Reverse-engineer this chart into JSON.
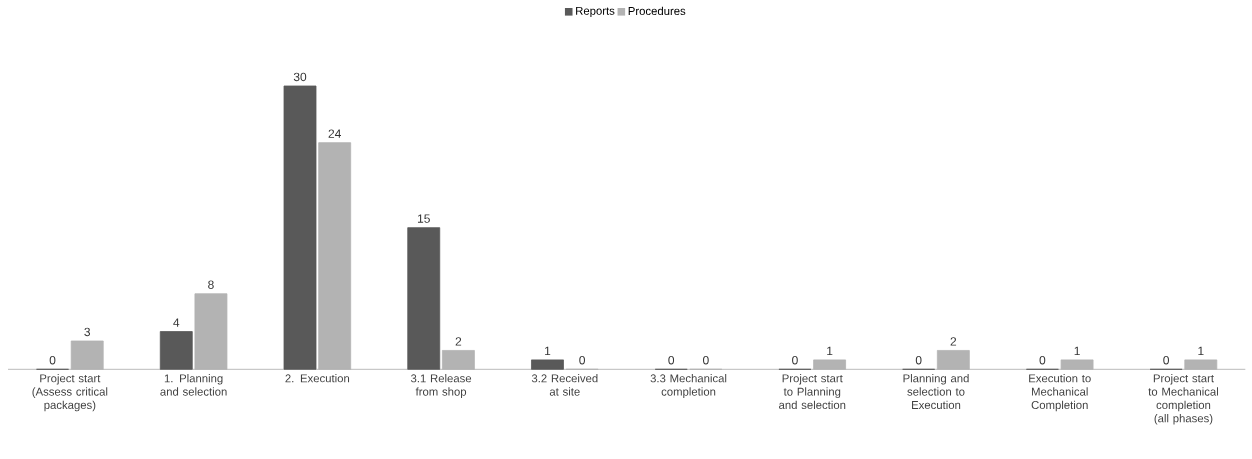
{
  "chart_data": {
    "type": "bar",
    "categories": [
      "Project start (Assess critical packages)",
      "1. Planning and selection",
      "2. Execution",
      "3.1 Release from shop",
      "3.2 Received at site",
      "3.3 Mechanical completion",
      "Project start to Planning and selection",
      "Planning and selection to Execution",
      "Execution to Mechanical Completion",
      "Project start to Mechanical completion (all phases)"
    ],
    "series": [
      {
        "name": "Reports",
        "color": "#595959",
        "values": [
          0,
          4,
          30,
          15,
          1,
          0,
          0,
          0,
          0,
          0
        ]
      },
      {
        "name": "Procedures",
        "color": "#b3b3b3",
        "values": [
          3,
          8,
          24,
          2,
          0,
          0,
          1,
          2,
          1,
          1
        ]
      }
    ],
    "data_labels": true,
    "legend": "top",
    "grid": false
  }
}
